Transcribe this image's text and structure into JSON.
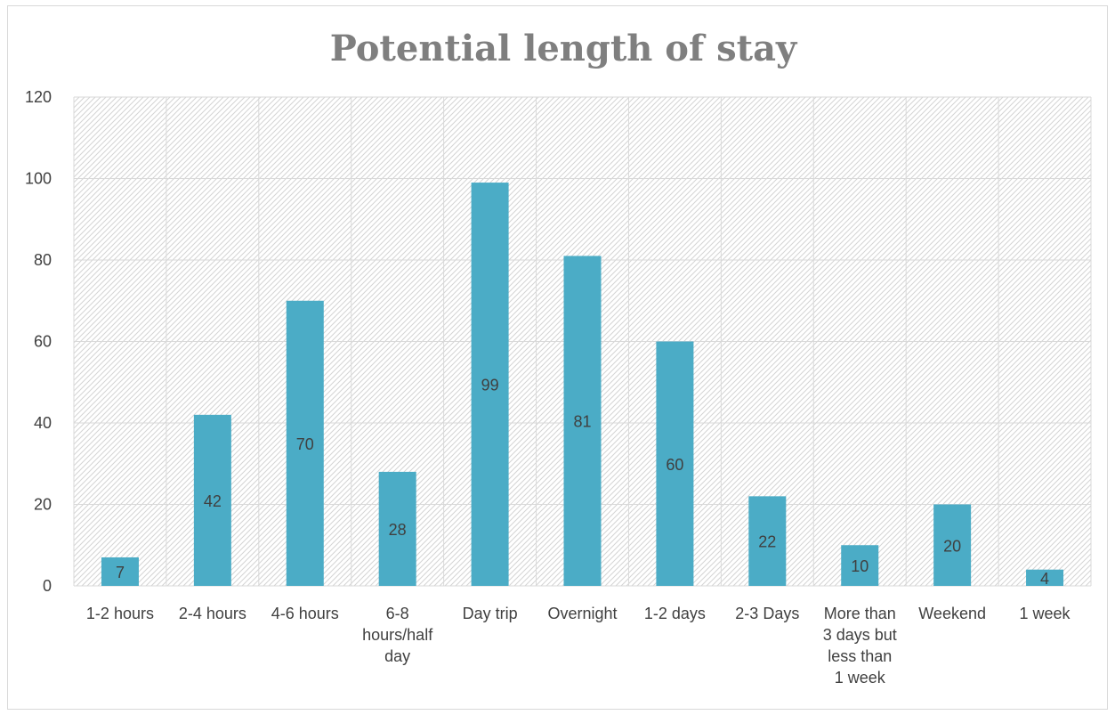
{
  "chart_data": {
    "type": "bar",
    "title": "Potential length of stay",
    "categories": [
      "1-2 hours",
      "2-4 hours",
      "4-6 hours",
      "6-8 hours/half day",
      "Day trip",
      "Overnight",
      "1-2 days",
      "2-3 Days",
      "More than 3 days but less than 1 week",
      "Weekend",
      "1 week"
    ],
    "category_lines": [
      [
        "1-2 hours"
      ],
      [
        "2-4 hours"
      ],
      [
        "4-6 hours"
      ],
      [
        "6-8",
        "hours/half",
        "day"
      ],
      [
        "Day trip"
      ],
      [
        "Overnight"
      ],
      [
        "1-2 days"
      ],
      [
        "2-3 Days"
      ],
      [
        "More than",
        "3 days but",
        "less than",
        "1 week"
      ],
      [
        "Weekend"
      ],
      [
        "1 week"
      ]
    ],
    "values": [
      7,
      42,
      70,
      28,
      99,
      81,
      60,
      22,
      10,
      20,
      4
    ],
    "data_labels": [
      "7",
      "42",
      "70",
      "28",
      "99",
      "81",
      "60",
      "22",
      "10",
      "20",
      "4"
    ],
    "ylim": [
      0,
      120
    ],
    "yticks": [
      0,
      20,
      40,
      60,
      80,
      100,
      120
    ],
    "grid": true,
    "legend": "none",
    "bar_color": "#4bacc6",
    "plot_background": "diagonal-hatch light gray"
  }
}
